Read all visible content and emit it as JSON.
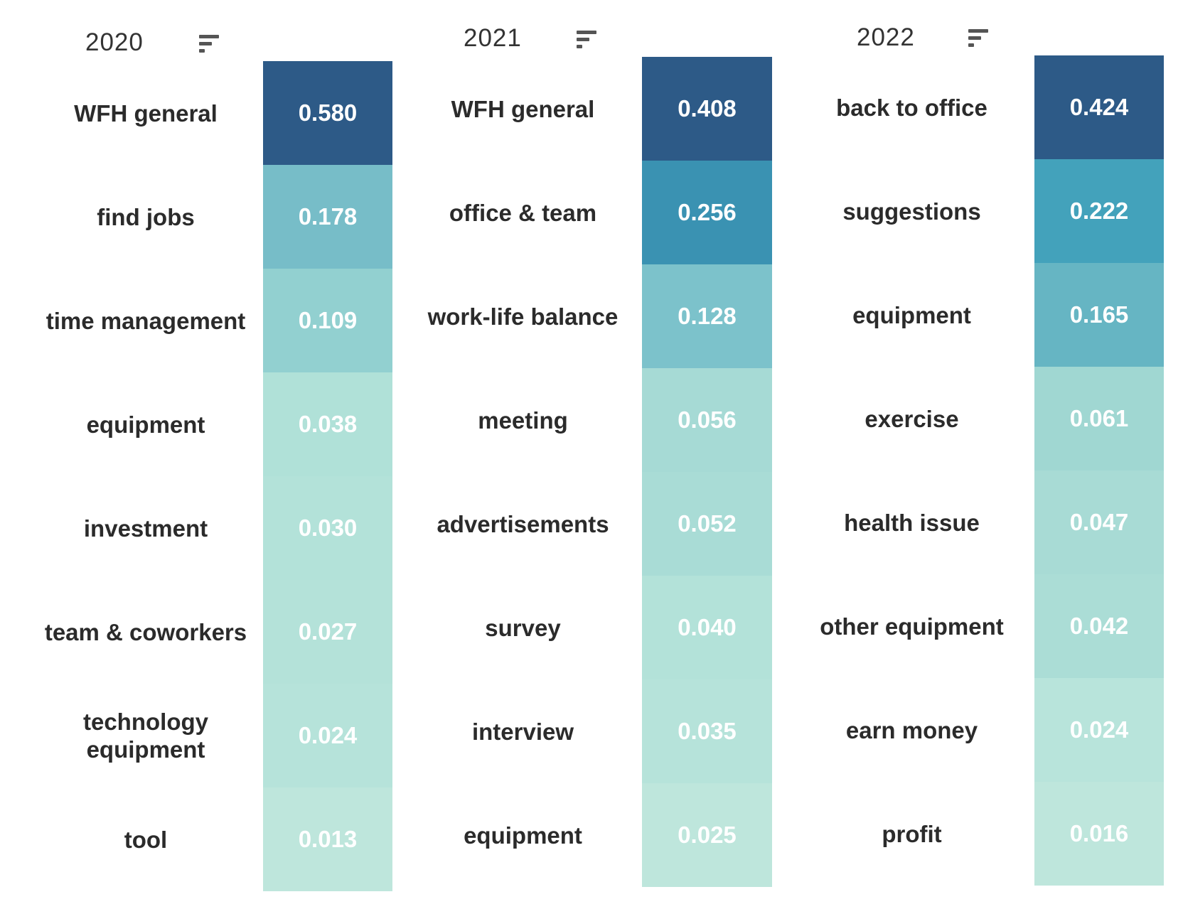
{
  "chart_data": {
    "type": "table",
    "panels": [
      {
        "year": "2020",
        "rows": [
          {
            "label": "WFH general",
            "value": "0.580",
            "v": 0.58,
            "color": "#2d5a87"
          },
          {
            "label": "find jobs",
            "value": "0.178",
            "v": 0.178,
            "color": "#77bdc8"
          },
          {
            "label": "time management",
            "value": "0.109",
            "v": 0.109,
            "color": "#92d0d0"
          },
          {
            "label": "equipment",
            "value": "0.038",
            "v": 0.038,
            "color": "#b0e1d8"
          },
          {
            "label": "investment",
            "value": "0.030",
            "v": 0.03,
            "color": "#b3e2d9"
          },
          {
            "label": "team & coworkers",
            "value": "0.027",
            "v": 0.027,
            "color": "#b4e2d9"
          },
          {
            "label": "technology equipment",
            "value": "0.024",
            "v": 0.024,
            "color": "#b6e3da"
          },
          {
            "label": "tool",
            "value": "0.013",
            "v": 0.013,
            "color": "#bee6dc"
          }
        ]
      },
      {
        "year": "2021",
        "rows": [
          {
            "label": "WFH general",
            "value": "0.408",
            "v": 0.408,
            "color": "#2d5a87"
          },
          {
            "label": "office & team",
            "value": "0.256",
            "v": 0.256,
            "color": "#3a92b2"
          },
          {
            "label": "work-life balance",
            "value": "0.128",
            "v": 0.128,
            "color": "#7cc2cb"
          },
          {
            "label": "meeting",
            "value": "0.056",
            "v": 0.056,
            "color": "#a6dad5"
          },
          {
            "label": "advertisements",
            "value": "0.052",
            "v": 0.052,
            "color": "#a9dcd6"
          },
          {
            "label": "survey",
            "value": "0.040",
            "v": 0.04,
            "color": "#b3e2d9"
          },
          {
            "label": "interview",
            "value": "0.035",
            "v": 0.035,
            "color": "#b6e3da"
          },
          {
            "label": "equipment",
            "value": "0.025",
            "v": 0.025,
            "color": "#bee6dc"
          }
        ]
      },
      {
        "year": "2022",
        "rows": [
          {
            "label": "back to office",
            "value": "0.424",
            "v": 0.424,
            "color": "#2d5a87"
          },
          {
            "label": "suggestions",
            "value": "0.222",
            "v": 0.222,
            "color": "#43a2bb"
          },
          {
            "label": "equipment",
            "value": "0.165",
            "v": 0.165,
            "color": "#66b5c3"
          },
          {
            "label": "exercise",
            "value": "0.061",
            "v": 0.061,
            "color": "#a0d7d2"
          },
          {
            "label": "health issue",
            "value": "0.047",
            "v": 0.047,
            "color": "#a8dbd5"
          },
          {
            "label": "other equipment",
            "value": "0.042",
            "v": 0.042,
            "color": "#abddd6"
          },
          {
            "label": "earn money",
            "value": "0.024",
            "v": 0.024,
            "color": "#b8e4db"
          },
          {
            "label": "profit",
            "value": "0.016",
            "v": 0.016,
            "color": "#bee6dc"
          }
        ]
      }
    ]
  }
}
